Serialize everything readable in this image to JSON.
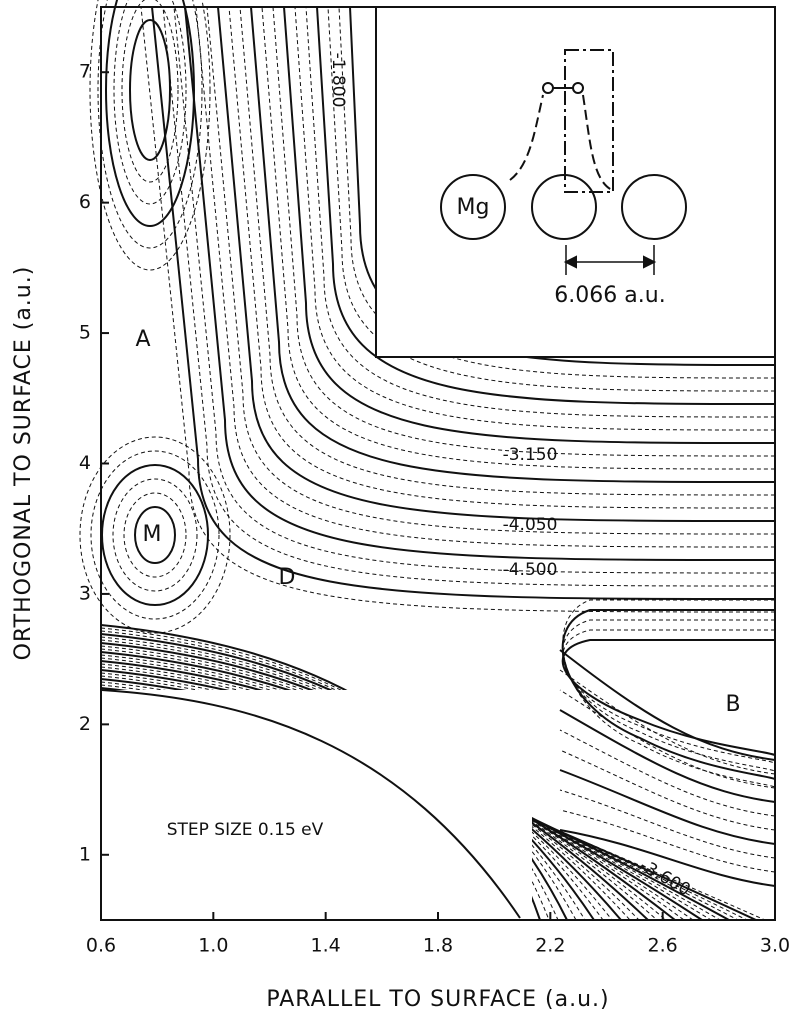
{
  "chart_data": {
    "type": "contour",
    "x_label": "PARALLEL TO SURFACE (a.u.)",
    "y_label": "ORTHOGONAL TO SURFACE (a.u.)",
    "xlim": [
      0.6,
      3.0
    ],
    "xticks": [
      0.6,
      {
        "value": 1,
        "label": "1.0"
      },
      1.4,
      1.8,
      2.2,
      2.6,
      {
        "value": 3,
        "label": "3.0"
      }
    ],
    "ylim": [
      0.5,
      7.5
    ],
    "yticks": [
      1,
      2,
      3,
      4,
      5,
      6,
      7
    ],
    "contour_labels": [
      "-1.800",
      "-3.150",
      "-4.050",
      "-4.500",
      "-3.600"
    ],
    "point_labels": [
      "A",
      "M",
      "D",
      "B"
    ],
    "note": "STEP SIZE 0.15 eV",
    "inset": {
      "atom": "Mg",
      "distance": "6.066 a.u."
    }
  }
}
